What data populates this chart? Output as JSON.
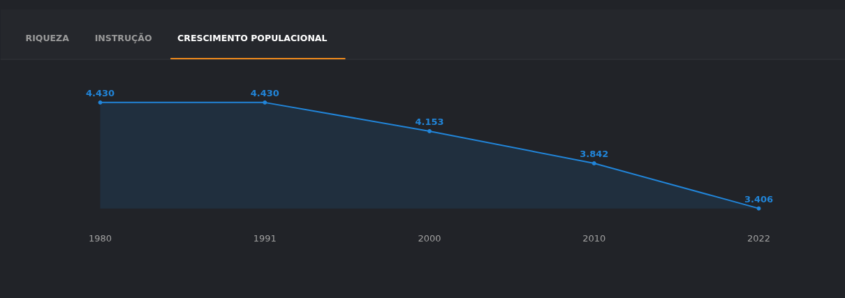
{
  "chart_data": {
    "type": "area",
    "title": "CRESCIMENTO POPULACIONAL",
    "annotations": [
      "RIQUEZA",
      "INSTRUÇÃO"
    ],
    "categories": [
      "1980",
      "1991",
      "2000",
      "2010",
      "2022"
    ],
    "series": [
      {
        "color": "#2185d9",
        "values": [
          4430,
          4430,
          4153,
          3842,
          3406
        ],
        "value_labels": [
          "4.430",
          "4.430",
          "4.153",
          "3.842",
          "3.406"
        ]
      }
    ],
    "marker": "circle",
    "grid": false,
    "tick_labels": "x"
  }
}
